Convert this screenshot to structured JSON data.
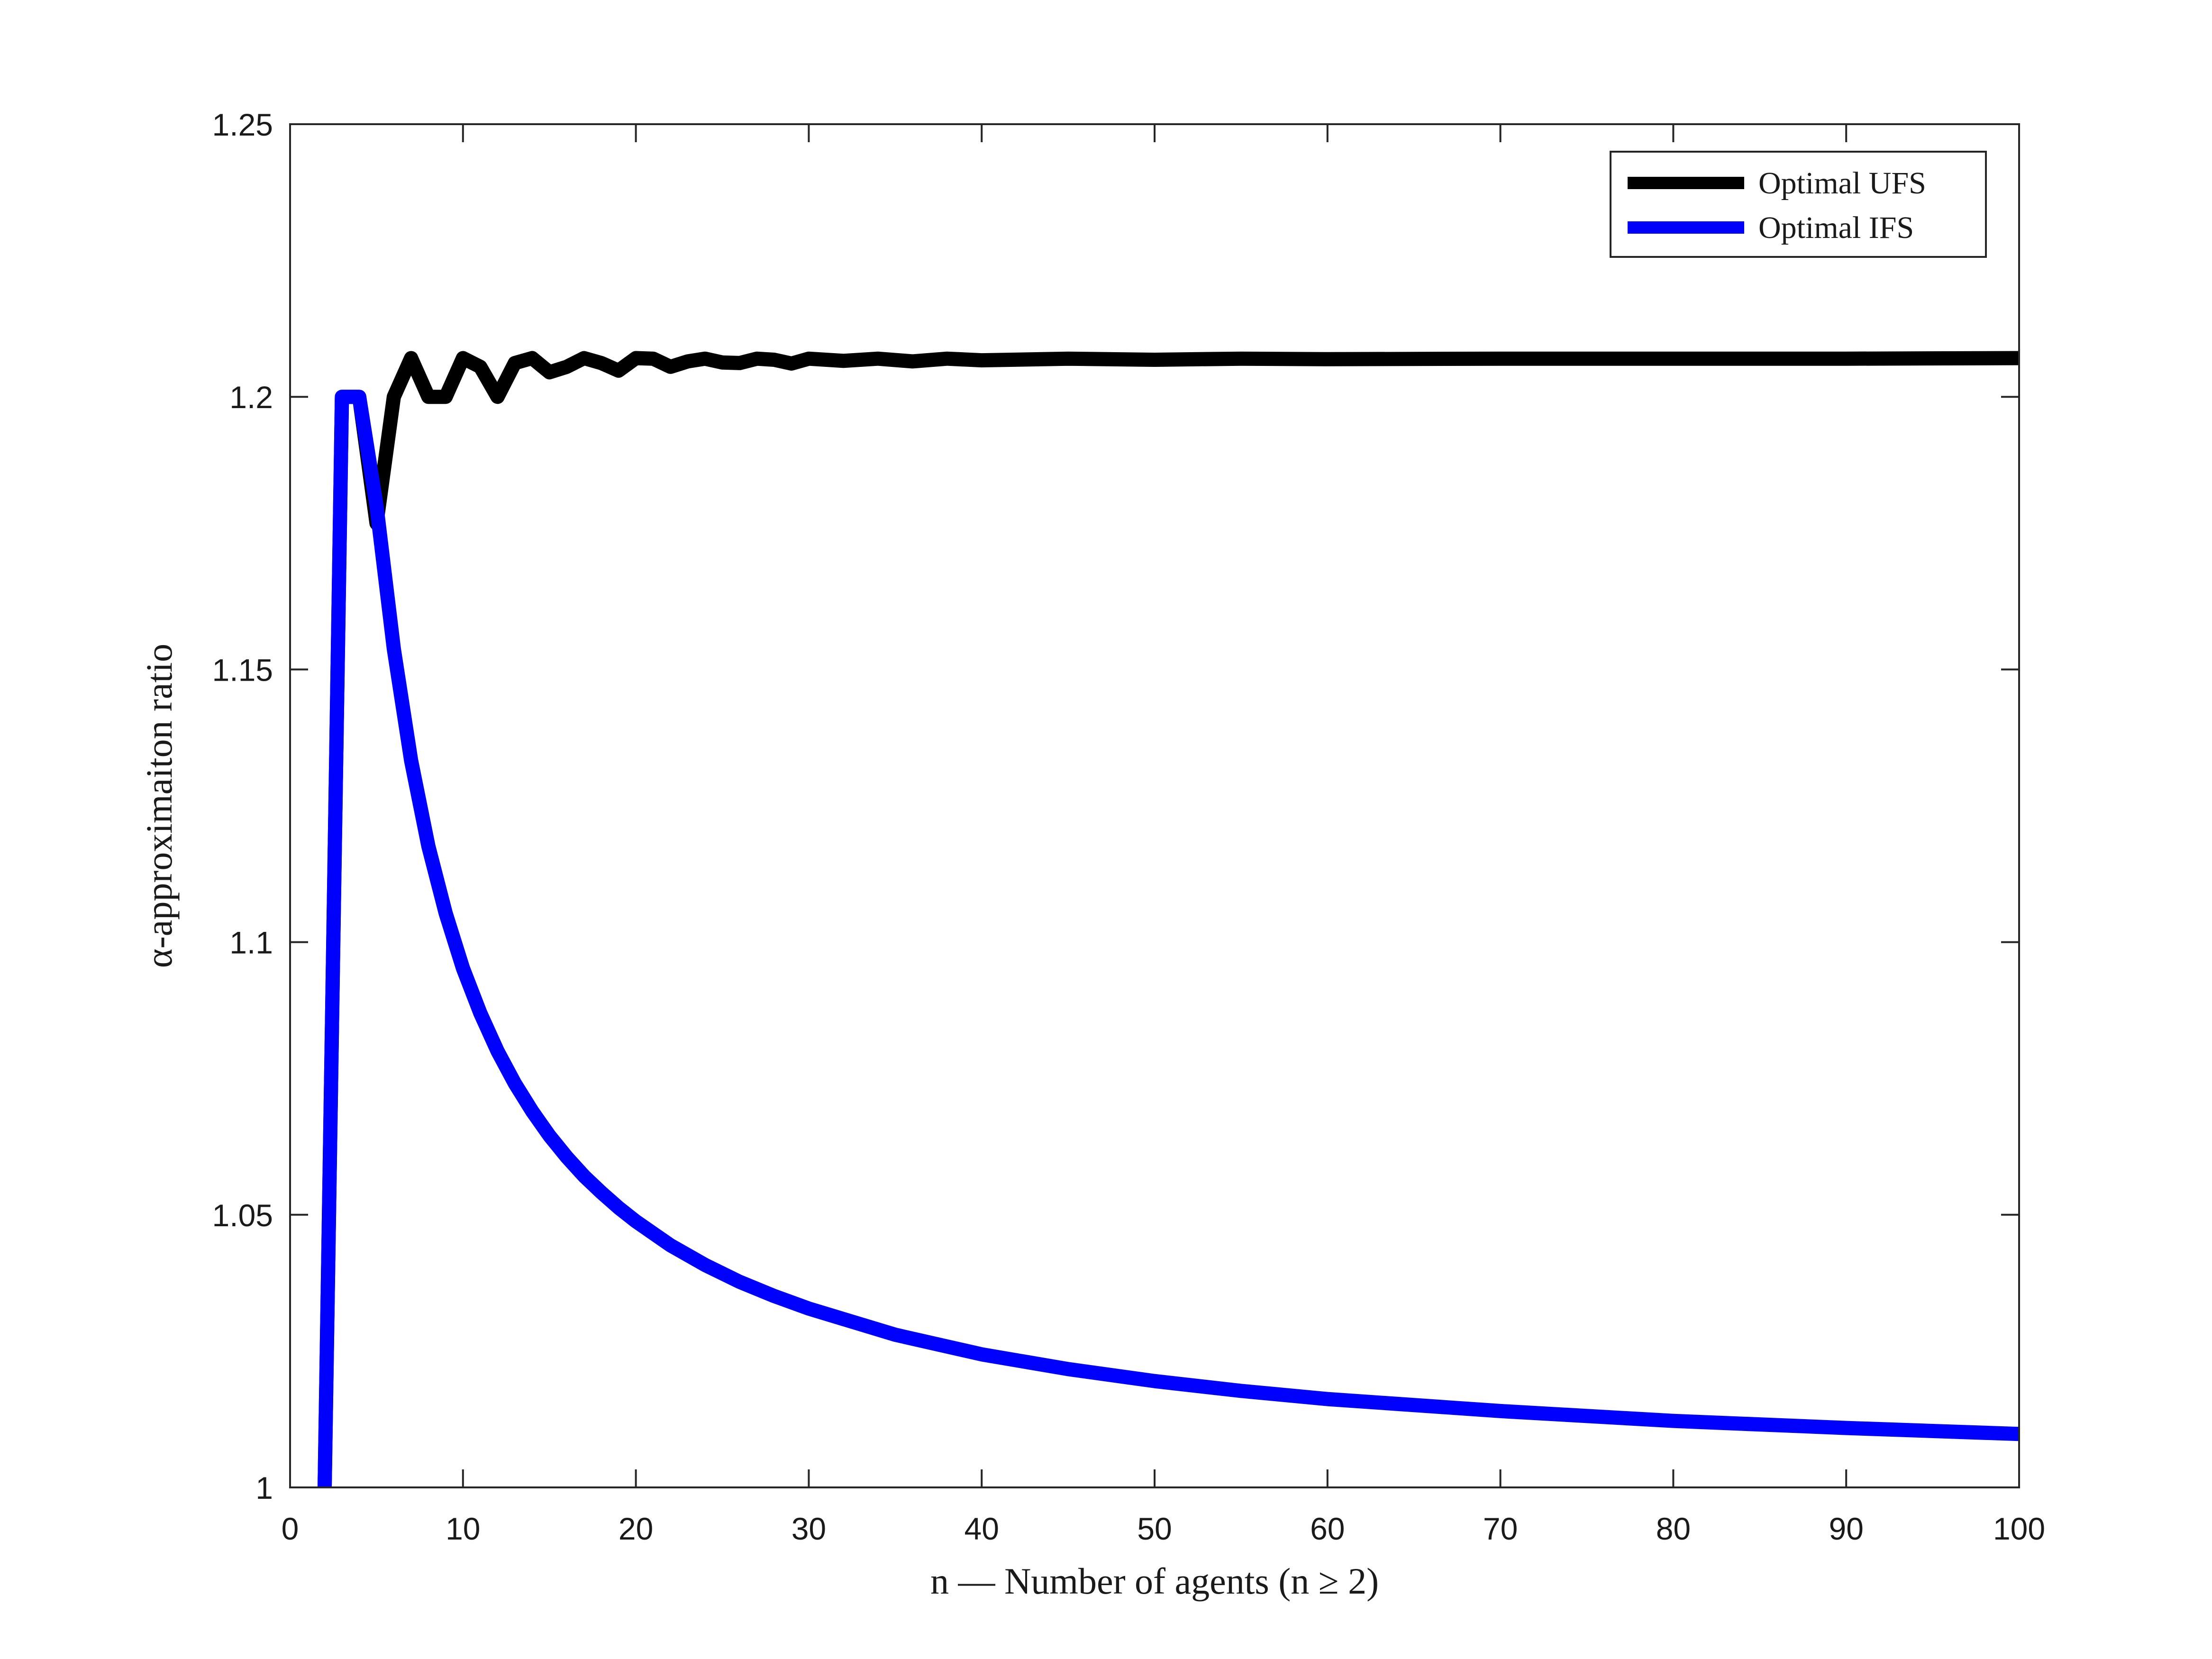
{
  "chart_data": {
    "type": "line",
    "title": "",
    "xlabel": "n — Number of agents (n ≥ 2)",
    "ylabel": "α-approximaiton ratio",
    "xlim": [
      0,
      100
    ],
    "ylim": [
      1,
      1.25
    ],
    "xticks": [
      "0",
      "10",
      "20",
      "30",
      "40",
      "50",
      "60",
      "70",
      "80",
      "90",
      "100"
    ],
    "yticks": [
      "1",
      "1.05",
      "1.1",
      "1.15",
      "1.2",
      "1.25"
    ],
    "grid": false,
    "legend_position": "top-right",
    "series": [
      {
        "name": "Optimal UFS",
        "color": "#000000",
        "x": [
          2,
          3,
          4,
          5,
          6,
          7,
          8,
          9,
          10,
          11,
          12,
          13,
          14,
          15,
          16,
          17,
          18,
          19,
          20,
          21,
          22,
          23,
          24,
          25,
          26,
          27,
          28,
          29,
          30,
          32,
          34,
          36,
          38,
          40,
          45,
          50,
          55,
          60,
          70,
          80,
          90,
          100
        ],
        "y": [
          1.0,
          1.2,
          1.2,
          1.1768,
          1.2,
          1.2071,
          1.2,
          1.2,
          1.2071,
          1.2055,
          1.2,
          1.2062,
          1.2071,
          1.2045,
          1.2055,
          1.2071,
          1.2062,
          1.2048,
          1.2071,
          1.207,
          1.2055,
          1.2065,
          1.207,
          1.2063,
          1.2062,
          1.207,
          1.2068,
          1.2061,
          1.207,
          1.2066,
          1.207,
          1.2065,
          1.207,
          1.2067,
          1.207,
          1.2068,
          1.207,
          1.2069,
          1.207,
          1.207,
          1.207,
          1.2071
        ]
      },
      {
        "name": "Optimal IFS",
        "color": "#0000ff",
        "x": [
          2,
          3,
          4,
          5,
          6,
          7,
          8,
          9,
          10,
          11,
          12,
          13,
          14,
          15,
          16,
          17,
          18,
          19,
          20,
          22,
          24,
          26,
          28,
          30,
          35,
          40,
          45,
          50,
          55,
          60,
          70,
          80,
          90,
          100
        ],
        "y": [
          1.0,
          1.2,
          1.2,
          1.18,
          1.1538,
          1.1333,
          1.1176,
          1.1053,
          1.0952,
          1.087,
          1.08,
          1.0741,
          1.069,
          1.0645,
          1.0606,
          1.0571,
          1.0541,
          1.0513,
          1.0488,
          1.0444,
          1.0408,
          1.0377,
          1.0351,
          1.0328,
          1.028,
          1.0244,
          1.0217,
          1.0195,
          1.0177,
          1.0162,
          1.014,
          1.0122,
          1.0109,
          1.0098
        ]
      }
    ]
  }
}
